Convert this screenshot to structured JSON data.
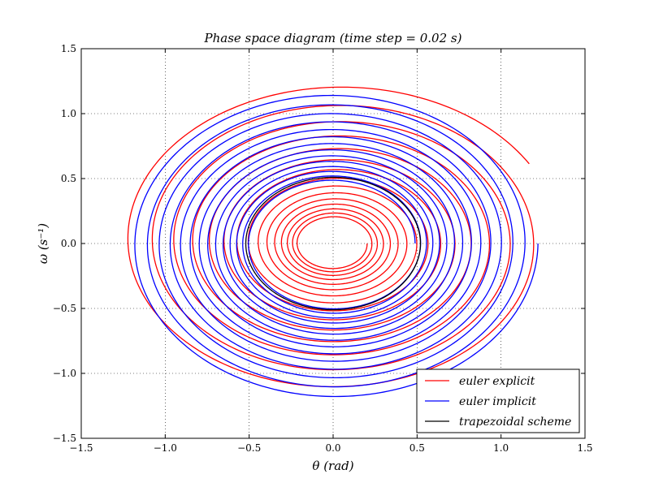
{
  "chart_data": {
    "type": "line",
    "title": "Phase space diagram (time step = 0.02 s)",
    "xlabel": "θ (rad)",
    "ylabel": "ω (s⁻¹)",
    "xlim": [
      -1.5,
      1.5
    ],
    "ylim": [
      -1.5,
      1.5
    ],
    "xticks": [
      "−1.5",
      "−1.0",
      "−0.5",
      "0.0",
      "0.5",
      "1.0",
      "1.5"
    ],
    "yticks": [
      "−1.5",
      "−1.0",
      "−0.5",
      "0.0",
      "0.5",
      "1.0",
      "1.5"
    ],
    "grid": true,
    "legend_position": "lower-right",
    "series": [
      {
        "name": "euler explicit",
        "color": "#ff0000",
        "kind": "growing-spiral",
        "start": [
          0.2,
          0.0
        ],
        "end": [
          1.13,
          -0.64
        ],
        "outer_extent": {
          "theta": [
            -1.29,
            1.34
          ],
          "omega": [
            -1.19,
            1.22
          ]
        },
        "turns": 14
      },
      {
        "name": "euler implicit",
        "color": "#0000ff",
        "kind": "decaying-spiral",
        "start": [
          0.5,
          0.0
        ],
        "end": [
          0.2,
          0.0
        ],
        "outer_extent": {
          "theta": [
            -0.52,
            0.52
          ],
          "omega": [
            -0.51,
            0.51
          ]
        },
        "turns": 14
      },
      {
        "name": "trapezoidal scheme",
        "color": "#000000",
        "kind": "closed-orbit",
        "amplitude_theta": 0.52,
        "amplitude_omega": 0.51
      }
    ]
  }
}
